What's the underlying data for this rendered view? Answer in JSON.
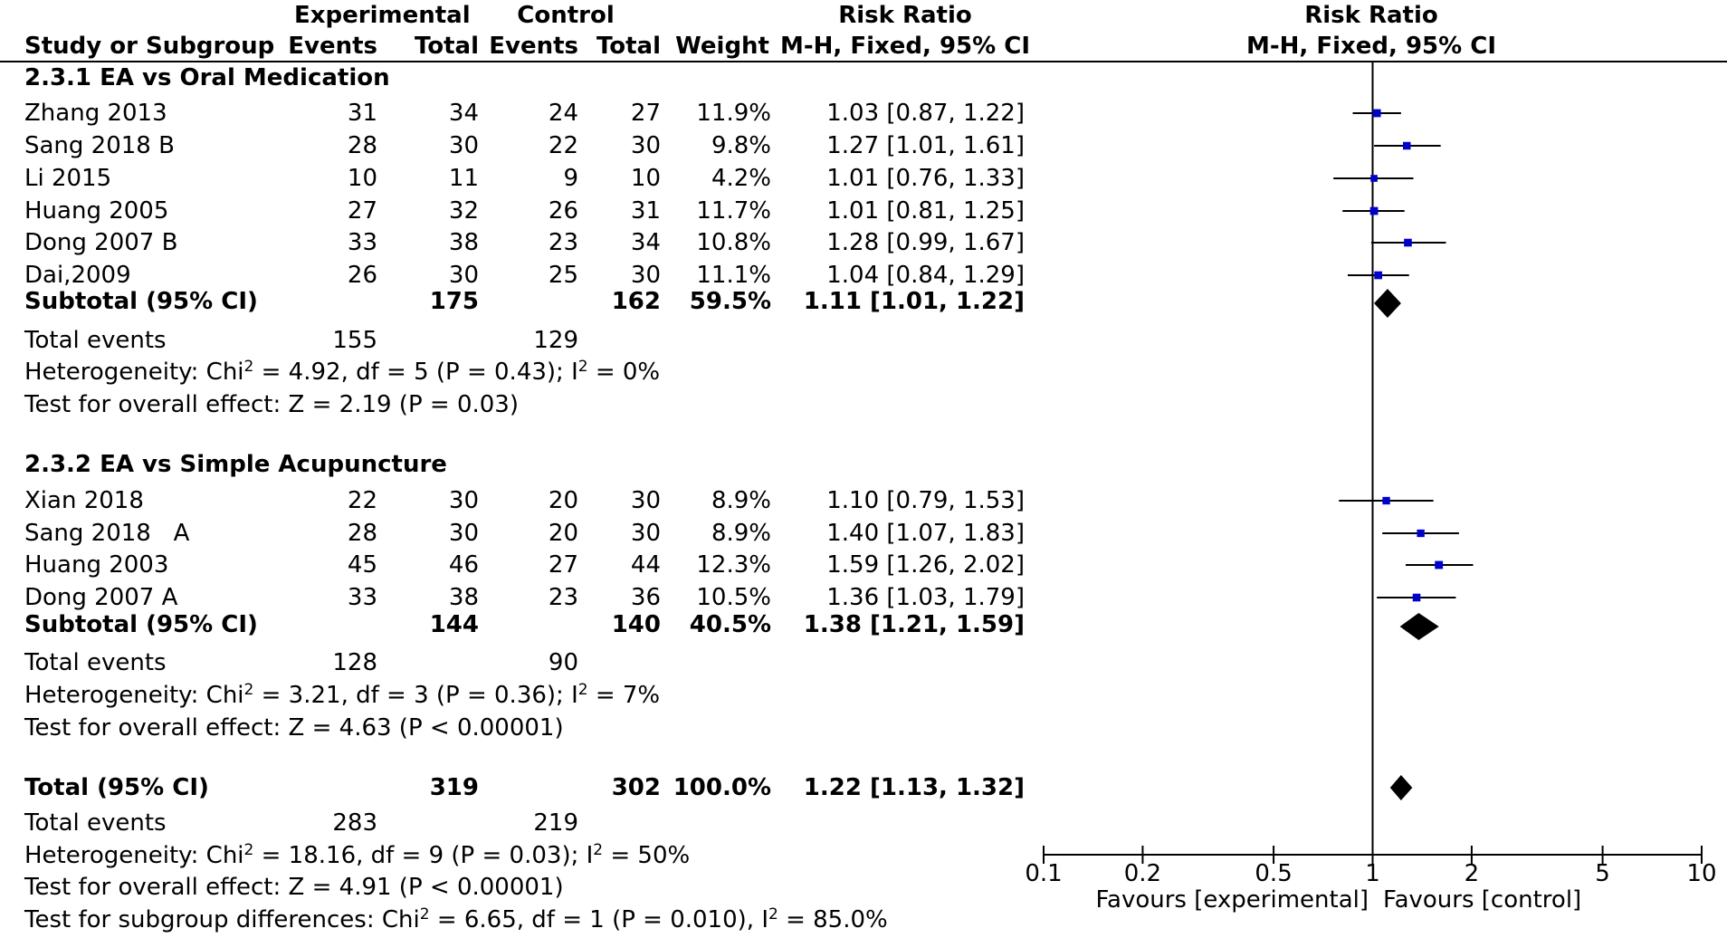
{
  "header": {
    "experimental": "Experimental",
    "control": "Control",
    "risk_ratio": "Risk Ratio",
    "study_col": "Study or Subgroup",
    "events": "Events",
    "total": "Total",
    "weight": "Weight",
    "method": "M-H, Fixed, 95% CI",
    "plot_title": "Risk Ratio",
    "plot_method": "M-H, Fixed, 95% CI"
  },
  "subgroups": [
    {
      "title": "2.3.1 EA vs Oral Medication",
      "studies": [
        {
          "name": "Zhang 2013",
          "exp_events": "31",
          "exp_total": "34",
          "ctl_events": "24",
          "ctl_total": "27",
          "weight": "11.9%",
          "ci_text": "1.03 [0.87, 1.22]"
        },
        {
          "name": "Sang 2018 B",
          "exp_events": "28",
          "exp_total": "30",
          "ctl_events": "22",
          "ctl_total": "30",
          "weight": "9.8%",
          "ci_text": "1.27 [1.01, 1.61]"
        },
        {
          "name": "Li 2015",
          "exp_events": "10",
          "exp_total": "11",
          "ctl_events": "9",
          "ctl_total": "10",
          "weight": "4.2%",
          "ci_text": "1.01 [0.76, 1.33]"
        },
        {
          "name": "Huang 2005",
          "exp_events": "27",
          "exp_total": "32",
          "ctl_events": "26",
          "ctl_total": "31",
          "weight": "11.7%",
          "ci_text": "1.01 [0.81, 1.25]"
        },
        {
          "name": "Dong 2007 B",
          "exp_events": "33",
          "exp_total": "38",
          "ctl_events": "23",
          "ctl_total": "34",
          "weight": "10.8%",
          "ci_text": "1.28 [0.99, 1.67]"
        },
        {
          "name": "Dai,2009",
          "exp_events": "26",
          "exp_total": "30",
          "ctl_events": "25",
          "ctl_total": "30",
          "weight": "11.1%",
          "ci_text": "1.04 [0.84, 1.29]"
        }
      ],
      "subtotal": {
        "label": "Subtotal (95% CI)",
        "exp_total": "175",
        "ctl_total": "162",
        "weight": "59.5%",
        "ci_text": "1.11 [1.01, 1.22]"
      },
      "total_events": {
        "label": "Total events",
        "exp": "155",
        "ctl": "129"
      },
      "heterogeneity": {
        "pre": "Heterogeneity: Chi",
        "mid": " = 4.92, df = 5 (P = 0.43); I",
        "post": " = 0%"
      },
      "overall_effect": "Test for overall effect: Z = 2.19 (P = 0.03)"
    },
    {
      "title": "2.3.2 EA vs Simple Acupuncture",
      "studies": [
        {
          "name": "Xian 2018",
          "exp_events": "22",
          "exp_total": "30",
          "ctl_events": "20",
          "ctl_total": "30",
          "weight": "8.9%",
          "ci_text": "1.10 [0.79, 1.53]"
        },
        {
          "name": "Sang 2018   A",
          "exp_events": "28",
          "exp_total": "30",
          "ctl_events": "20",
          "ctl_total": "30",
          "weight": "8.9%",
          "ci_text": "1.40 [1.07, 1.83]"
        },
        {
          "name": "Huang 2003",
          "exp_events": "45",
          "exp_total": "46",
          "ctl_events": "27",
          "ctl_total": "44",
          "weight": "12.3%",
          "ci_text": "1.59 [1.26, 2.02]"
        },
        {
          "name": "Dong 2007 A",
          "exp_events": "33",
          "exp_total": "38",
          "ctl_events": "23",
          "ctl_total": "36",
          "weight": "10.5%",
          "ci_text": "1.36 [1.03, 1.79]"
        }
      ],
      "subtotal": {
        "label": "Subtotal (95% CI)",
        "exp_total": "144",
        "ctl_total": "140",
        "weight": "40.5%",
        "ci_text": "1.38 [1.21, 1.59]"
      },
      "total_events": {
        "label": "Total events",
        "exp": "128",
        "ctl": "90"
      },
      "heterogeneity": {
        "pre": "Heterogeneity: Chi",
        "mid": " = 3.21, df = 3 (P = 0.36); I",
        "post": " = 7%"
      },
      "overall_effect": "Test for overall effect: Z = 4.63 (P < 0.00001)"
    }
  ],
  "total": {
    "label": "Total (95% CI)",
    "exp_total": "319",
    "ctl_total": "302",
    "weight": "100.0%",
    "ci_text": "1.22 [1.13, 1.32]"
  },
  "total_events": {
    "label": "Total events",
    "exp": "283",
    "ctl": "219"
  },
  "heterogeneity": {
    "pre": "Heterogeneity: Chi",
    "mid": " = 18.16, df = 9 (P = 0.03); I",
    "post": " = 50%"
  },
  "overall_effect": "Test for overall effect: Z = 4.91 (P < 0.00001)",
  "subgroup_diff": {
    "pre": "Test for subgroup differences: Chi",
    "mid": " = 6.65, df = 1 (P = 0.010), I",
    "post": " = 85.0%"
  },
  "sup2": "2",
  "axis": {
    "ticks": [
      "0.1",
      "0.2",
      "0.5",
      "1",
      "2",
      "5",
      "10"
    ],
    "favours_left": "Favours [experimental]",
    "favours_right": "Favours [control]"
  },
  "chart_data": {
    "type": "forest",
    "scale": "log",
    "xlim": [
      0.1,
      10
    ],
    "reference_line": 1,
    "x_ticks": [
      0.1,
      0.2,
      0.5,
      1,
      2,
      5,
      10
    ],
    "colors": {
      "study_marker": "#0000cc",
      "diamond": "#000000",
      "lines": "#000000"
    },
    "studies": [
      {
        "name": "Zhang 2013",
        "rr": 1.03,
        "lo": 0.87,
        "hi": 1.22,
        "weight": 11.9
      },
      {
        "name": "Sang 2018 B",
        "rr": 1.27,
        "lo": 1.01,
        "hi": 1.61,
        "weight": 9.8
      },
      {
        "name": "Li 2015",
        "rr": 1.01,
        "lo": 0.76,
        "hi": 1.33,
        "weight": 4.2
      },
      {
        "name": "Huang 2005",
        "rr": 1.01,
        "lo": 0.81,
        "hi": 1.25,
        "weight": 11.7
      },
      {
        "name": "Dong 2007 B",
        "rr": 1.28,
        "lo": 0.99,
        "hi": 1.67,
        "weight": 10.8
      },
      {
        "name": "Dai,2009",
        "rr": 1.04,
        "lo": 0.84,
        "hi": 1.29,
        "weight": 11.1
      },
      {
        "name": "Xian 2018",
        "rr": 1.1,
        "lo": 0.79,
        "hi": 1.53,
        "weight": 8.9
      },
      {
        "name": "Sang 2018 A",
        "rr": 1.4,
        "lo": 1.07,
        "hi": 1.83,
        "weight": 8.9
      },
      {
        "name": "Huang 2003",
        "rr": 1.59,
        "lo": 1.26,
        "hi": 2.02,
        "weight": 12.3
      },
      {
        "name": "Dong 2007 A",
        "rr": 1.36,
        "lo": 1.03,
        "hi": 1.79,
        "weight": 10.5
      }
    ],
    "pooled": [
      {
        "name": "Subtotal 2.3.1",
        "rr": 1.11,
        "lo": 1.01,
        "hi": 1.22
      },
      {
        "name": "Subtotal 2.3.2",
        "rr": 1.38,
        "lo": 1.21,
        "hi": 1.59
      },
      {
        "name": "Total",
        "rr": 1.22,
        "lo": 1.13,
        "hi": 1.32
      }
    ]
  }
}
